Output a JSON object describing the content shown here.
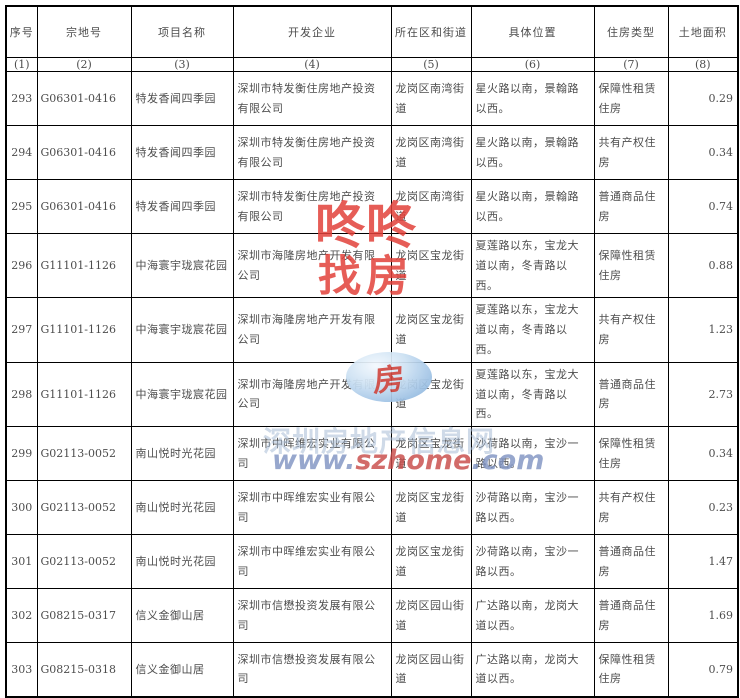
{
  "table": {
    "columns": [
      {
        "label": "序号",
        "num": "(1)"
      },
      {
        "label": "宗地号",
        "num": "(2)"
      },
      {
        "label": "项目名称",
        "num": "(3)"
      },
      {
        "label": "开发企业",
        "num": "(4)"
      },
      {
        "label": "所在区和街道",
        "num": "(5)"
      },
      {
        "label": "具体位置",
        "num": "(6)"
      },
      {
        "label": "住房类型",
        "num": "(7)"
      },
      {
        "label": "土地面积",
        "num": "(8)"
      }
    ],
    "rows": [
      {
        "cells": [
          "293",
          "G06301-0416",
          "特发香闻四季园",
          "深圳市特发衡住房地产投资有限公司",
          "龙岗区南湾街道",
          "星火路以南，景翰路以西。",
          "保障性租赁住房",
          "0.29"
        ]
      },
      {
        "cells": [
          "294",
          "G06301-0416",
          "特发香闻四季园",
          "深圳市特发衡住房地产投资有限公司",
          "龙岗区南湾街道",
          "星火路以南，景翰路以西。",
          "共有产权住房",
          "0.34"
        ]
      },
      {
        "cells": [
          "295",
          "G06301-0416",
          "特发香闻四季园",
          "深圳市特发衡住房地产投资有限公司",
          "龙岗区南湾街道",
          "星火路以南，景翰路以西。",
          "普通商品住房",
          "0.74"
        ]
      },
      {
        "cells": [
          "296",
          "G11101-1126",
          "中海寰宇珑宸花园",
          "深圳市海隆房地产开发有限公司",
          "龙岗区宝龙街道",
          "夏莲路以东，宝龙大道以南，冬青路以西。",
          "保障性租赁住房",
          "0.88"
        ]
      },
      {
        "cells": [
          "297",
          "G11101-1126",
          "中海寰宇珑宸花园",
          "深圳市海隆房地产开发有限公司",
          "龙岗区宝龙街道",
          "夏莲路以东，宝龙大道以南，冬青路以西。",
          "共有产权住房",
          "1.23"
        ]
      },
      {
        "cells": [
          "298",
          "G11101-1126",
          "中海寰宇珑宸花园",
          "深圳市海隆房地产开发有限公司",
          "龙岗区宝龙街道",
          "夏莲路以东，宝龙大道以南，冬青路以西。",
          "普通商品住房",
          "2.73"
        ]
      },
      {
        "cells": [
          "299",
          "G02113-0052",
          "南山悦时光花园",
          "深圳市中晖维宏实业有限公司",
          "龙岗区宝龙街道",
          "沙荷路以南，宝沙一路以西。",
          "保障性租赁住房",
          "0.34"
        ]
      },
      {
        "cells": [
          "300",
          "G02113-0052",
          "南山悦时光花园",
          "深圳市中晖维宏实业有限公司",
          "龙岗区宝龙街道",
          "沙荷路以南，宝沙一路以西。",
          "共有产权住房",
          "0.23"
        ]
      },
      {
        "cells": [
          "301",
          "G02113-0052",
          "南山悦时光花园",
          "深圳市中晖维宏实业有限公司",
          "龙岗区宝龙街道",
          "沙荷路以南，宝沙一路以西。",
          "普通商品住房",
          "1.47"
        ]
      },
      {
        "cells": [
          "302",
          "G08215-0317",
          "信义金御山居",
          "深圳市信懋投资发展有限公司",
          "龙岗区园山街道",
          "广达路以南，龙岗大道以西。",
          "普通商品住房",
          "1.69"
        ]
      },
      {
        "cells": [
          "303",
          "G08215-0318",
          "信义金御山居",
          "深圳市信懋投资发展有限公司",
          "龙岗区园山街道",
          "广达路以南，龙岗大道以西。",
          "保障性租赁住房",
          "0.79"
        ]
      }
    ]
  },
  "watermarks": {
    "stamp": {
      "line1": "咚咚",
      "line2": "找房",
      "color": "#e2413a"
    },
    "logo": {
      "glyph": "房"
    },
    "site_name": "深圳房地产信息网",
    "site_url": {
      "prefix": "www.",
      "brand": "szhome",
      "suffix": ".com"
    },
    "colors": {
      "url_blue": "#8094c2",
      "url_red": "#c84b48",
      "site_name_blue": "#a8bcd6"
    }
  }
}
